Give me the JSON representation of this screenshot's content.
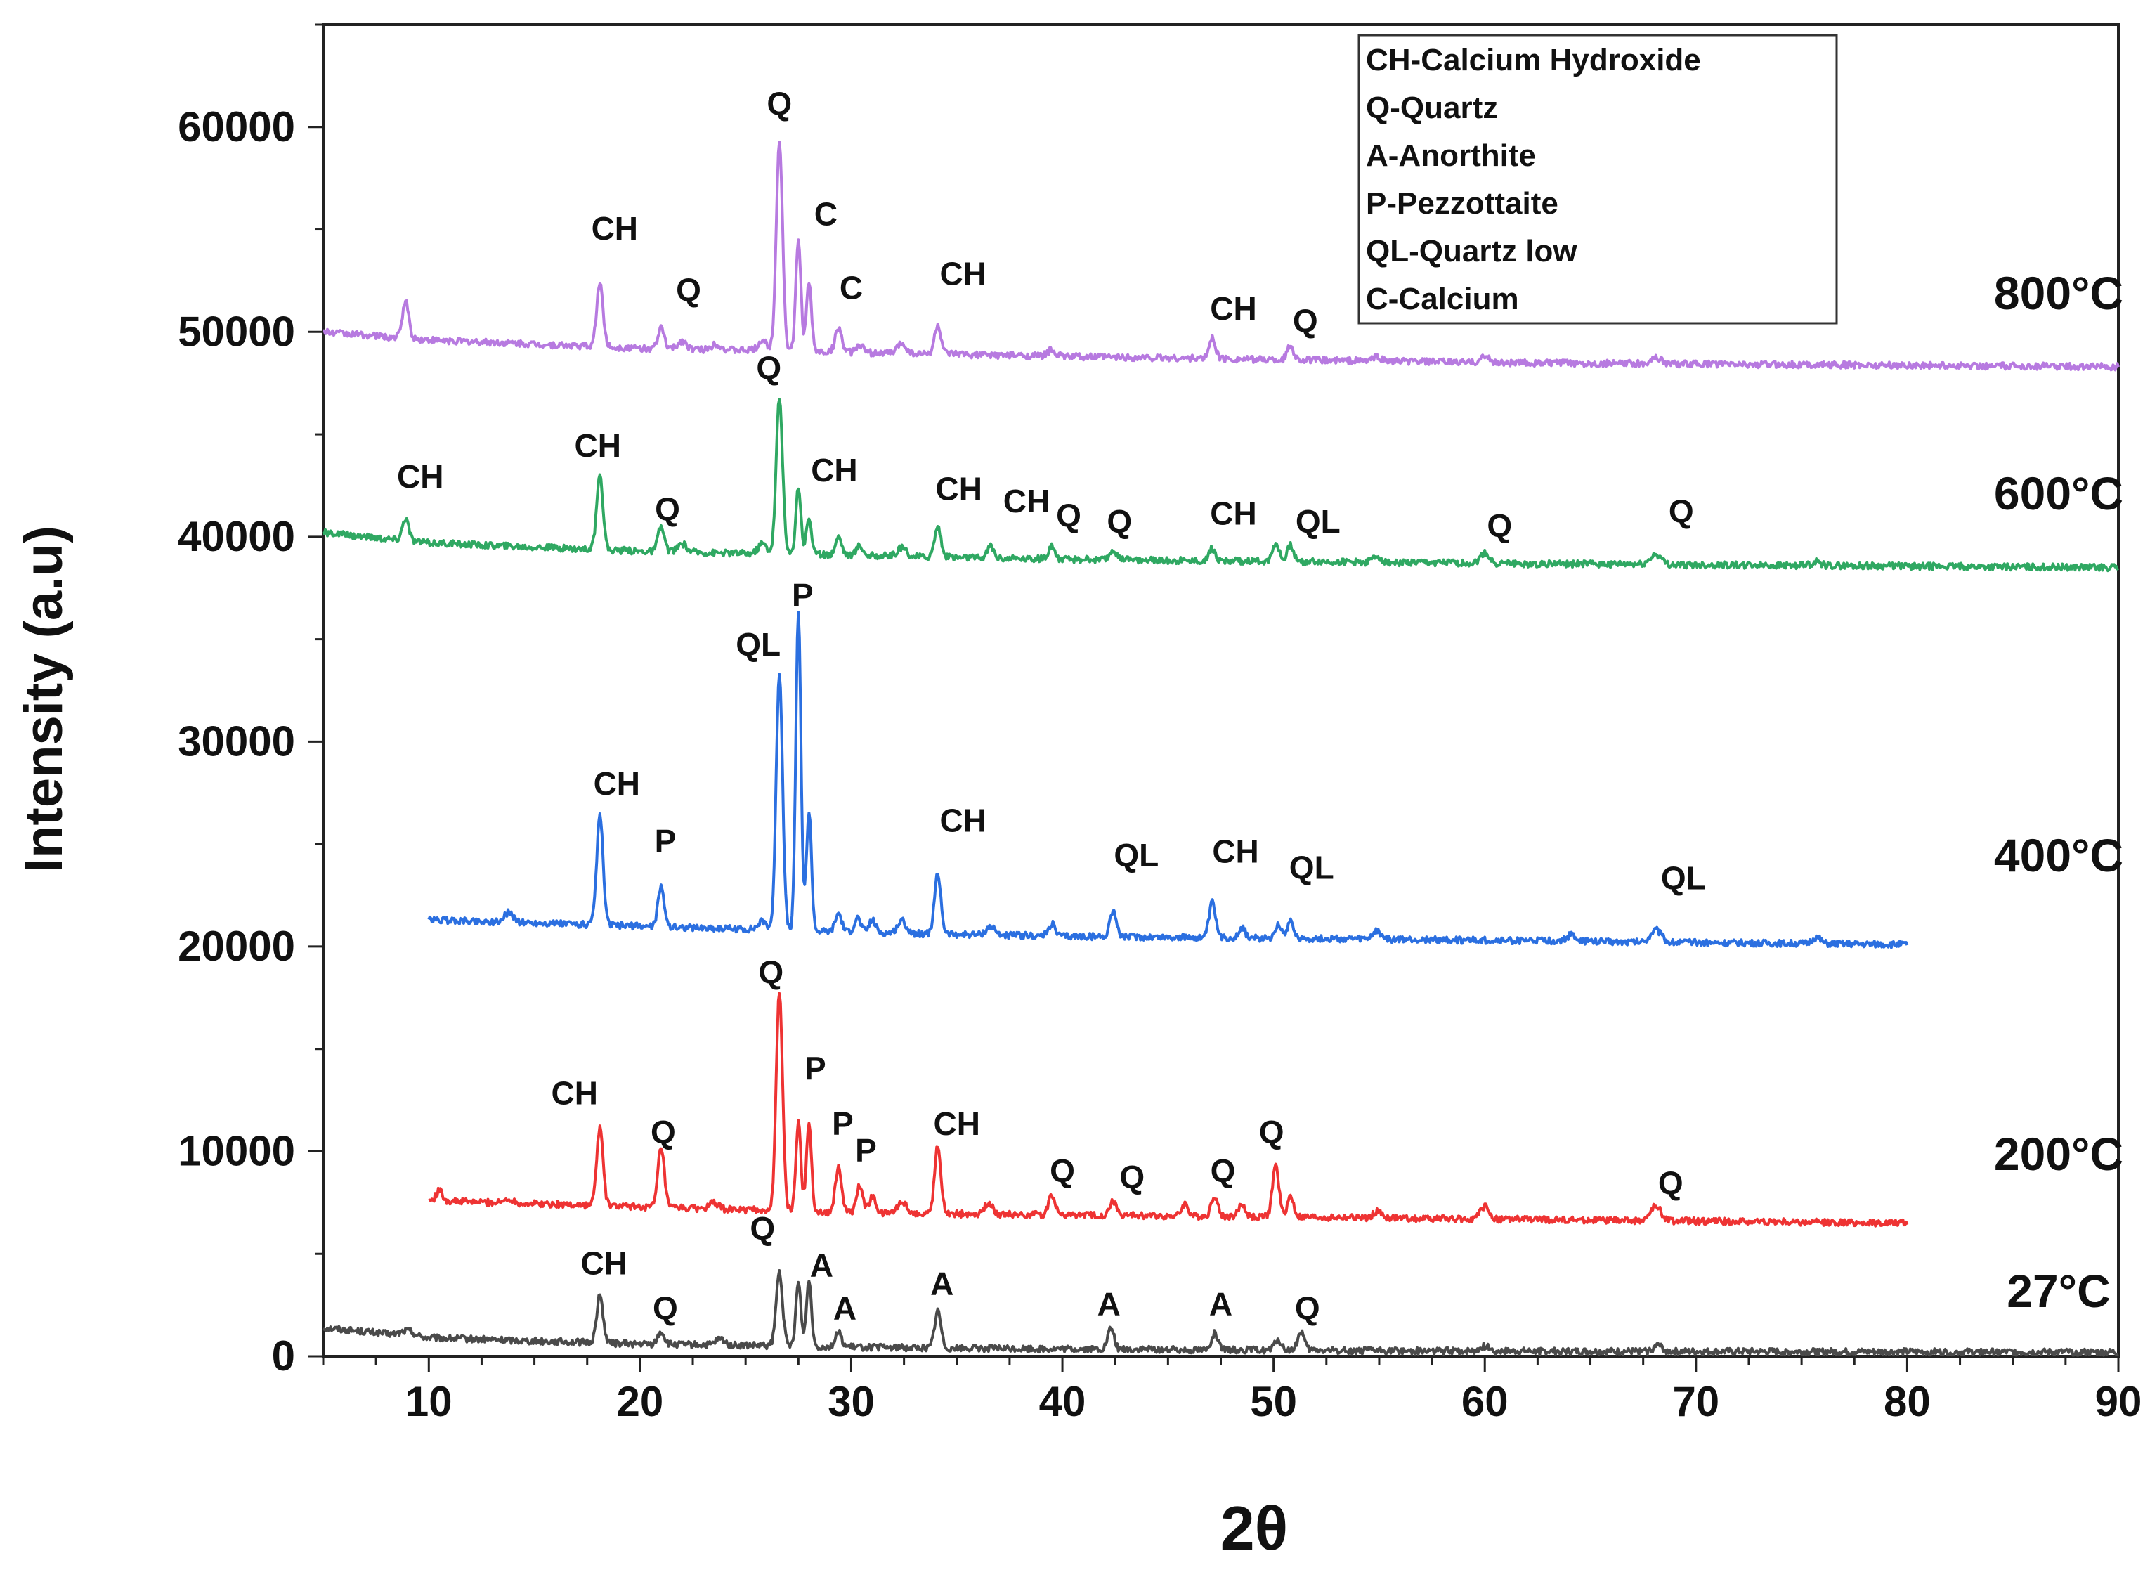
{
  "chart_data": {
    "type": "line",
    "title": "",
    "xlabel": "2θ",
    "ylabel": "Intensity (a.u)",
    "xlim": [
      5,
      90
    ],
    "ylim": [
      0,
      65000
    ],
    "xticks": [
      10,
      20,
      30,
      40,
      50,
      60,
      70,
      80,
      90
    ],
    "yticks": [
      0,
      10000,
      20000,
      30000,
      40000,
      50000,
      60000
    ],
    "grid": false,
    "legend": {
      "position": "top-right",
      "entries": [
        "CH-Calcium Hydroxide",
        "Q-Quartz",
        "A-Anorthite",
        "P-Pezzottaite",
        "QL-Quartz low",
        "C-Calcium"
      ]
    },
    "series": [
      {
        "name": "27°C",
        "color": "#4a4a4a",
        "x_range": [
          5,
          90
        ],
        "baseline": [
          [
            5,
            1400
          ],
          [
            10,
            900
          ],
          [
            20,
            600
          ],
          [
            30,
            450
          ],
          [
            40,
            350
          ],
          [
            60,
            250
          ],
          [
            90,
            200
          ]
        ],
        "peaks": [
          [
            9,
            250,
            0.3
          ],
          [
            18.1,
            2300,
            0.15
          ],
          [
            21,
            600,
            0.15
          ],
          [
            23.8,
            300,
            0.2
          ],
          [
            26.6,
            3600,
            0.15
          ],
          [
            27.5,
            3100,
            0.12
          ],
          [
            28,
            3200,
            0.12
          ],
          [
            29.4,
            700,
            0.15
          ],
          [
            34.1,
            1800,
            0.15
          ],
          [
            42.3,
            1000,
            0.15
          ],
          [
            47.2,
            800,
            0.15
          ],
          [
            50.2,
            500,
            0.15
          ],
          [
            51.3,
            900,
            0.15
          ],
          [
            60,
            250,
            0.2
          ],
          [
            68.2,
            300,
            0.2
          ]
        ],
        "label_text": "27°C",
        "peak_labels": [
          {
            "text": "CH",
            "x": 18.3,
            "y": 4000
          },
          {
            "text": "Q",
            "x": 21.2,
            "y": 1800
          },
          {
            "text": "Q",
            "x": 25.8,
            "y": 5700
          },
          {
            "text": "A",
            "x": 28.6,
            "y": 3900
          },
          {
            "text": "A",
            "x": 29.7,
            "y": 1800
          },
          {
            "text": "A",
            "x": 34.3,
            "y": 3000
          },
          {
            "text": "A",
            "x": 42.2,
            "y": 2000
          },
          {
            "text": "A",
            "x": 47.5,
            "y": 2000
          },
          {
            "text": "Q",
            "x": 51.6,
            "y": 1800
          }
        ]
      },
      {
        "name": "200°C",
        "color": "#ee3333",
        "x_range": [
          10,
          80
        ],
        "baseline": [
          [
            10,
            7600
          ],
          [
            20,
            7300
          ],
          [
            30,
            7000
          ],
          [
            40,
            6900
          ],
          [
            60,
            6700
          ],
          [
            80,
            6500
          ]
        ],
        "peaks": [
          [
            10.5,
            500,
            0.15
          ],
          [
            13.8,
            200,
            0.2
          ],
          [
            18.1,
            3800,
            0.15
          ],
          [
            21,
            2900,
            0.15
          ],
          [
            23.5,
            300,
            0.2
          ],
          [
            26.6,
            10700,
            0.15
          ],
          [
            27.5,
            4300,
            0.12
          ],
          [
            28,
            4300,
            0.12
          ],
          [
            29.4,
            2200,
            0.15
          ],
          [
            30.4,
            1300,
            0.15
          ],
          [
            31,
            800,
            0.15
          ],
          [
            32.4,
            600,
            0.2
          ],
          [
            34.1,
            3300,
            0.15
          ],
          [
            36.5,
            500,
            0.2
          ],
          [
            39.5,
            1000,
            0.15
          ],
          [
            42.4,
            700,
            0.15
          ],
          [
            45.8,
            600,
            0.15
          ],
          [
            47.2,
            1000,
            0.15
          ],
          [
            48.5,
            600,
            0.15
          ],
          [
            50.1,
            2500,
            0.15
          ],
          [
            50.8,
            1000,
            0.15
          ],
          [
            54.9,
            300,
            0.2
          ],
          [
            60,
            600,
            0.2
          ],
          [
            68.1,
            700,
            0.25
          ]
        ],
        "label_text": "200°C",
        "peak_labels": [
          {
            "text": "CH",
            "x": 16.9,
            "y": 12300
          },
          {
            "text": "Q",
            "x": 21.1,
            "y": 10400
          },
          {
            "text": "Q",
            "x": 26.2,
            "y": 18200
          },
          {
            "text": "P",
            "x": 28.3,
            "y": 13500
          },
          {
            "text": "P",
            "x": 29.6,
            "y": 10800
          },
          {
            "text": "P",
            "x": 30.7,
            "y": 9500
          },
          {
            "text": "CH",
            "x": 35,
            "y": 10800
          },
          {
            "text": "Q",
            "x": 40,
            "y": 8500
          },
          {
            "text": "Q",
            "x": 43.3,
            "y": 8200
          },
          {
            "text": "Q",
            "x": 47.6,
            "y": 8500
          },
          {
            "text": "Q",
            "x": 49.9,
            "y": 10400
          },
          {
            "text": "Q",
            "x": 68.8,
            "y": 7900
          }
        ]
      },
      {
        "name": "400°C",
        "color": "#2b6fe0",
        "x_range": [
          10,
          80
        ],
        "baseline": [
          [
            10,
            21300
          ],
          [
            20,
            21000
          ],
          [
            30,
            20700
          ],
          [
            40,
            20500
          ],
          [
            60,
            20300
          ],
          [
            80,
            20100
          ]
        ],
        "peaks": [
          [
            13.8,
            500,
            0.2
          ],
          [
            18.1,
            5300,
            0.15
          ],
          [
            21,
            1900,
            0.15
          ],
          [
            25.8,
            400,
            0.2
          ],
          [
            26.6,
            12600,
            0.15
          ],
          [
            27.5,
            15600,
            0.12
          ],
          [
            28,
            5800,
            0.12
          ],
          [
            29.4,
            900,
            0.15
          ],
          [
            30.3,
            700,
            0.15
          ],
          [
            31,
            600,
            0.15
          ],
          [
            32.4,
            600,
            0.2
          ],
          [
            34.1,
            2900,
            0.15
          ],
          [
            36.6,
            400,
            0.2
          ],
          [
            39.5,
            600,
            0.15
          ],
          [
            42.4,
            1300,
            0.15
          ],
          [
            47.1,
            1700,
            0.15
          ],
          [
            48.5,
            500,
            0.15
          ],
          [
            50.2,
            700,
            0.15
          ],
          [
            50.8,
            900,
            0.15
          ],
          [
            54.9,
            400,
            0.2
          ],
          [
            64.1,
            300,
            0.2
          ],
          [
            68.1,
            600,
            0.25
          ],
          [
            75.7,
            300,
            0.2
          ]
        ],
        "label_text": "400°C",
        "peak_labels": [
          {
            "text": "CH",
            "x": 18.9,
            "y": 27400
          },
          {
            "text": "P",
            "x": 21.2,
            "y": 24600
          },
          {
            "text": "QL",
            "x": 25.6,
            "y": 34200
          },
          {
            "text": "P",
            "x": 27.7,
            "y": 36600
          },
          {
            "text": "CH",
            "x": 35.3,
            "y": 25600
          },
          {
            "text": "QL",
            "x": 43.5,
            "y": 23900
          },
          {
            "text": "CH",
            "x": 48.2,
            "y": 24100
          },
          {
            "text": "QL",
            "x": 51.8,
            "y": 23300
          },
          {
            "text": "QL",
            "x": 69.4,
            "y": 22800
          }
        ]
      },
      {
        "name": "600°C",
        "color": "#2fa862",
        "x_range": [
          5,
          90
        ],
        "baseline": [
          [
            5,
            40200
          ],
          [
            10,
            39700
          ],
          [
            20,
            39300
          ],
          [
            30,
            39100
          ],
          [
            40,
            38900
          ],
          [
            60,
            38700
          ],
          [
            90,
            38500
          ]
        ],
        "peaks": [
          [
            8.9,
            1100,
            0.15
          ],
          [
            18.1,
            3500,
            0.15
          ],
          [
            21,
            1200,
            0.15
          ],
          [
            22,
            400,
            0.2
          ],
          [
            25.8,
            500,
            0.2
          ],
          [
            26.6,
            7600,
            0.15
          ],
          [
            27.5,
            3300,
            0.12
          ],
          [
            28,
            1800,
            0.12
          ],
          [
            29.4,
            900,
            0.15
          ],
          [
            30.4,
            500,
            0.15
          ],
          [
            32.4,
            400,
            0.2
          ],
          [
            34.1,
            1500,
            0.15
          ],
          [
            36.6,
            600,
            0.15
          ],
          [
            39.5,
            600,
            0.15
          ],
          [
            42.4,
            500,
            0.15
          ],
          [
            47.1,
            600,
            0.15
          ],
          [
            50.1,
            900,
            0.15
          ],
          [
            50.8,
            800,
            0.15
          ],
          [
            54.9,
            300,
            0.2
          ],
          [
            60,
            500,
            0.2
          ],
          [
            68.1,
            500,
            0.25
          ],
          [
            75.7,
            200,
            0.2
          ]
        ],
        "label_text": "600°C",
        "peak_labels": [
          {
            "text": "CH",
            "x": 9.6,
            "y": 42400
          },
          {
            "text": "CH",
            "x": 18,
            "y": 43900
          },
          {
            "text": "Q",
            "x": 21.3,
            "y": 40800
          },
          {
            "text": "Q",
            "x": 26.1,
            "y": 47700
          },
          {
            "text": "CH",
            "x": 29.2,
            "y": 42700
          },
          {
            "text": "CH",
            "x": 35.1,
            "y": 41800
          },
          {
            "text": "CH",
            "x": 38.3,
            "y": 41200
          },
          {
            "text": "Q",
            "x": 40.3,
            "y": 40500
          },
          {
            "text": "Q",
            "x": 42.7,
            "y": 40200
          },
          {
            "text": "CH",
            "x": 48.1,
            "y": 40600
          },
          {
            "text": "QL",
            "x": 52.1,
            "y": 40200
          },
          {
            "text": "Q",
            "x": 60.7,
            "y": 40000
          },
          {
            "text": "Q",
            "x": 69.3,
            "y": 40700
          }
        ]
      },
      {
        "name": "800°C",
        "color": "#b77ae0",
        "x_range": [
          5,
          90
        ],
        "baseline": [
          [
            5,
            50000
          ],
          [
            10,
            49600
          ],
          [
            20,
            49200
          ],
          [
            30,
            49000
          ],
          [
            40,
            48800
          ],
          [
            60,
            48500
          ],
          [
            90,
            48300
          ]
        ],
        "peaks": [
          [
            8.9,
            1800,
            0.15
          ],
          [
            18.1,
            3100,
            0.15
          ],
          [
            21,
            1000,
            0.15
          ],
          [
            22,
            400,
            0.2
          ],
          [
            23.6,
            300,
            0.2
          ],
          [
            25.8,
            500,
            0.2
          ],
          [
            26.6,
            10200,
            0.15
          ],
          [
            27.5,
            5400,
            0.12
          ],
          [
            28,
            3300,
            0.12
          ],
          [
            29.4,
            1200,
            0.15
          ],
          [
            30.4,
            400,
            0.15
          ],
          [
            32.4,
            500,
            0.2
          ],
          [
            34.1,
            1400,
            0.15
          ],
          [
            39.5,
            300,
            0.2
          ],
          [
            47.1,
            1000,
            0.15
          ],
          [
            50.8,
            700,
            0.15
          ],
          [
            54.9,
            200,
            0.2
          ],
          [
            60,
            300,
            0.2
          ],
          [
            68.1,
            300,
            0.25
          ]
        ],
        "label_text": "800°C",
        "peak_labels": [
          {
            "text": "CH",
            "x": 18.8,
            "y": 54500
          },
          {
            "text": "Q",
            "x": 22.3,
            "y": 51500
          },
          {
            "text": "Q",
            "x": 26.6,
            "y": 60600
          },
          {
            "text": "C",
            "x": 28.8,
            "y": 55200
          },
          {
            "text": "C",
            "x": 30,
            "y": 51600
          },
          {
            "text": "CH",
            "x": 35.3,
            "y": 52300
          },
          {
            "text": "CH",
            "x": 48.1,
            "y": 50600
          },
          {
            "text": "Q",
            "x": 51.5,
            "y": 50000
          }
        ]
      }
    ]
  }
}
